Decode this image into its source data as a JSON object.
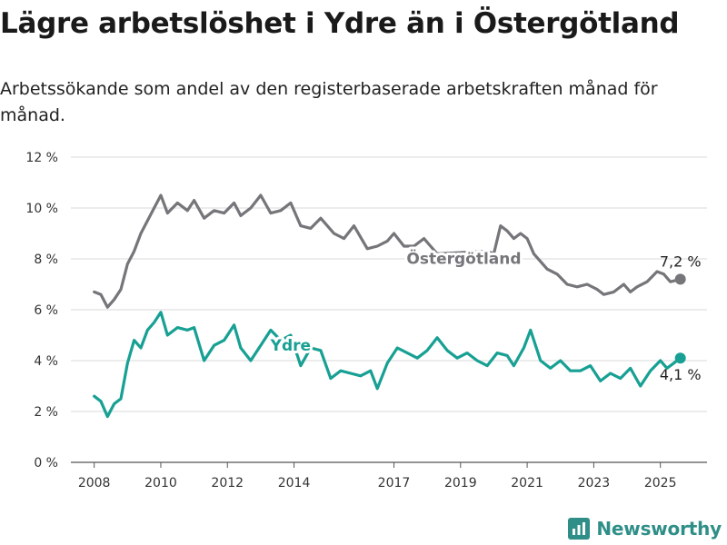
{
  "title": "Lägre arbetslöshet i Ydre än i Östergötland",
  "subtitle": "Arbetssökande som andel av den registerbaserade arbetskraften månad för månad.",
  "brand": "Newsworthy",
  "colors": {
    "ostergotland": "#75757a",
    "ydre": "#17a093",
    "grid": "#d9d9d9",
    "brand": "#2f8f88"
  },
  "chart_data": {
    "type": "line",
    "y_ticks": [
      "0 %",
      "2 %",
      "4 %",
      "6 %",
      "8 %",
      "10 %",
      "12 %"
    ],
    "x_ticks": [
      "2008",
      "2010",
      "2012",
      "2014",
      "2017",
      "2019",
      "2021",
      "2023",
      "2025"
    ],
    "ylim": [
      0,
      12
    ],
    "xlim": [
      2007.3,
      2026.4
    ],
    "grid": true,
    "series": [
      {
        "name": "Östergötland",
        "end_label": "7,2 %",
        "x": [
          2008.0,
          2008.2,
          2008.4,
          2008.6,
          2008.8,
          2009.0,
          2009.2,
          2009.4,
          2009.6,
          2009.8,
          2010.0,
          2010.2,
          2010.5,
          2010.8,
          2011.0,
          2011.3,
          2011.6,
          2011.9,
          2012.2,
          2012.4,
          2012.7,
          2013.0,
          2013.3,
          2013.6,
          2013.9,
          2014.2,
          2014.5,
          2014.8,
          2015.2,
          2015.5,
          2015.8,
          2016.2,
          2016.5,
          2016.8,
          2017.0,
          2017.3,
          2017.6,
          2017.9,
          2018.1,
          2018.3,
          2019.8,
          2020.0,
          2020.2,
          2020.4,
          2020.6,
          2020.8,
          2021.0,
          2021.2,
          2021.6,
          2021.9,
          2022.2,
          2022.5,
          2022.8,
          2023.1,
          2023.3,
          2023.6,
          2023.9,
          2024.1,
          2024.3,
          2024.6,
          2024.9,
          2025.1,
          2025.3,
          2025.6
        ],
        "values": [
          6.7,
          6.6,
          6.1,
          6.4,
          6.8,
          7.8,
          8.3,
          9.0,
          9.5,
          10.0,
          10.5,
          9.8,
          10.2,
          9.9,
          10.3,
          9.6,
          9.9,
          9.8,
          10.2,
          9.7,
          10.0,
          10.5,
          9.8,
          9.9,
          10.2,
          9.3,
          9.2,
          9.6,
          9.0,
          8.8,
          9.3,
          8.4,
          8.5,
          8.7,
          9.0,
          8.5,
          8.5,
          8.8,
          8.5,
          8.2,
          8.3,
          8.2,
          9.3,
          9.1,
          8.8,
          9.0,
          8.8,
          8.2,
          7.6,
          7.4,
          7.0,
          6.9,
          7.0,
          6.8,
          6.6,
          6.7,
          7.0,
          6.7,
          6.9,
          7.1,
          7.5,
          7.4,
          7.1,
          7.2
        ]
      },
      {
        "name": "Ydre",
        "end_label": "4,1 %",
        "x": [
          2008.0,
          2008.2,
          2008.4,
          2008.6,
          2008.8,
          2009.0,
          2009.2,
          2009.4,
          2009.6,
          2009.8,
          2010.0,
          2010.2,
          2010.5,
          2010.8,
          2011.0,
          2011.3,
          2011.6,
          2011.9,
          2012.2,
          2012.4,
          2012.7,
          2013.0,
          2013.3,
          2013.6,
          2013.9,
          2014.2,
          2014.5,
          2014.8,
          2015.1,
          2015.4,
          2015.7,
          2016.0,
          2016.3,
          2016.5,
          2016.8,
          2017.1,
          2017.4,
          2017.7,
          2018.0,
          2018.3,
          2018.6,
          2018.9,
          2019.2,
          2019.5,
          2019.8,
          2020.1,
          2020.4,
          2020.6,
          2020.9,
          2021.1,
          2021.4,
          2021.7,
          2022.0,
          2022.3,
          2022.6,
          2022.9,
          2023.2,
          2023.5,
          2023.8,
          2024.1,
          2024.4,
          2024.7,
          2025.0,
          2025.2,
          2025.4,
          2025.6
        ],
        "values": [
          2.6,
          2.4,
          1.8,
          2.3,
          2.5,
          3.9,
          4.8,
          4.5,
          5.2,
          5.5,
          5.9,
          5.0,
          5.3,
          5.2,
          5.3,
          4.0,
          4.6,
          4.8,
          5.4,
          4.5,
          4.0,
          4.6,
          5.2,
          4.8,
          5.0,
          3.8,
          4.5,
          4.4,
          3.3,
          3.6,
          3.5,
          3.4,
          3.6,
          2.9,
          3.9,
          4.5,
          4.3,
          4.1,
          4.4,
          4.9,
          4.4,
          4.1,
          4.3,
          4.0,
          3.8,
          4.3,
          4.2,
          3.8,
          4.5,
          5.2,
          4.0,
          3.7,
          4.0,
          3.6,
          3.6,
          3.8,
          3.2,
          3.5,
          3.3,
          3.7,
          3.0,
          3.6,
          4.0,
          3.7,
          3.9,
          4.1
        ]
      }
    ]
  }
}
